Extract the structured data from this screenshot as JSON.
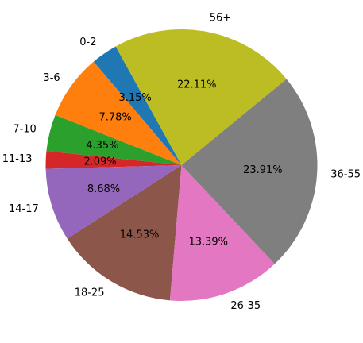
{
  "chart_data": {
    "type": "pie",
    "title": "",
    "categories": [
      "0-2",
      "3-6",
      "7-10",
      "11-13",
      "14-17",
      "18-25",
      "26-35",
      "36-55",
      "56+"
    ],
    "values": [
      3.15,
      7.78,
      4.35,
      2.09,
      8.68,
      14.53,
      13.39,
      23.91,
      22.11
    ],
    "percent_labels": [
      "3.15%",
      "7.78%",
      "4.35%",
      "2.09%",
      "8.68%",
      "14.53%",
      "13.39%",
      "23.91%",
      "22.11%"
    ],
    "colors": [
      "#1f77b4",
      "#ff7f0e",
      "#2ca02c",
      "#d62728",
      "#9467bd",
      "#8c564b",
      "#e377c2",
      "#7f7f7f",
      "#bcbd22"
    ],
    "start_angle_deg": 119,
    "direction": "counterclockwise",
    "legend": "none"
  }
}
